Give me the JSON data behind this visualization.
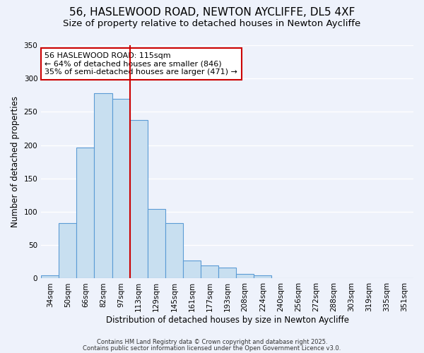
{
  "title": "56, HASLEWOOD ROAD, NEWTON AYCLIFFE, DL5 4XF",
  "subtitle": "Size of property relative to detached houses in Newton Aycliffe",
  "xlabel": "Distribution of detached houses by size in Newton Aycliffe",
  "ylabel": "Number of detached properties",
  "categories": [
    "34sqm",
    "50sqm",
    "66sqm",
    "82sqm",
    "97sqm",
    "113sqm",
    "129sqm",
    "145sqm",
    "161sqm",
    "177sqm",
    "193sqm",
    "208sqm",
    "224sqm",
    "240sqm",
    "256sqm",
    "272sqm",
    "288sqm",
    "303sqm",
    "319sqm",
    "335sqm",
    "351sqm"
  ],
  "values": [
    5,
    83,
    196,
    278,
    270,
    238,
    104,
    83,
    27,
    20,
    16,
    7,
    5,
    0,
    0,
    0,
    0,
    0,
    1,
    0,
    1
  ],
  "bar_color": "#c8dff0",
  "bar_edge_color": "#5b9bd5",
  "vline_x": 4.5,
  "vline_color": "#cc0000",
  "ylim": [
    0,
    350
  ],
  "yticks": [
    0,
    50,
    100,
    150,
    200,
    250,
    300,
    350
  ],
  "annotation_text": "56 HASLEWOOD ROAD: 115sqm\n← 64% of detached houses are smaller (846)\n35% of semi-detached houses are larger (471) →",
  "annotation_box_color": "#ffffff",
  "annotation_box_edge": "#cc0000",
  "footer_line1": "Contains HM Land Registry data © Crown copyright and database right 2025.",
  "footer_line2": "Contains public sector information licensed under the Open Government Licence v3.0.",
  "background_color": "#eef2fb",
  "grid_color": "#ffffff",
  "title_fontsize": 11,
  "subtitle_fontsize": 9.5,
  "bar_edge_width": 0.8
}
